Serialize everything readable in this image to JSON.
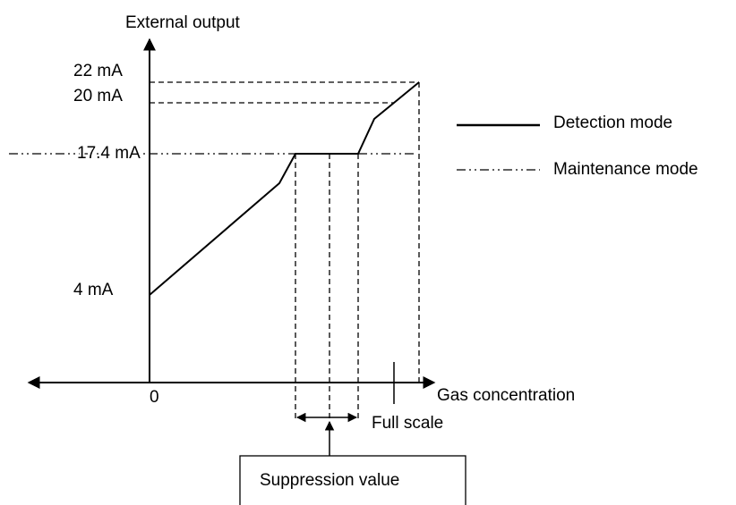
{
  "diagram": {
    "y_axis_label": "External output",
    "x_axis_label": "Gas concentration",
    "origin_label": "0",
    "levels": [
      "22 mA",
      "20 mA",
      "17.4 mA",
      "4 mA"
    ],
    "full_scale_label": "Full scale",
    "suppression_label": "Suppression value",
    "legend": [
      "Detection mode",
      "Maintenance mode"
    ]
  }
}
